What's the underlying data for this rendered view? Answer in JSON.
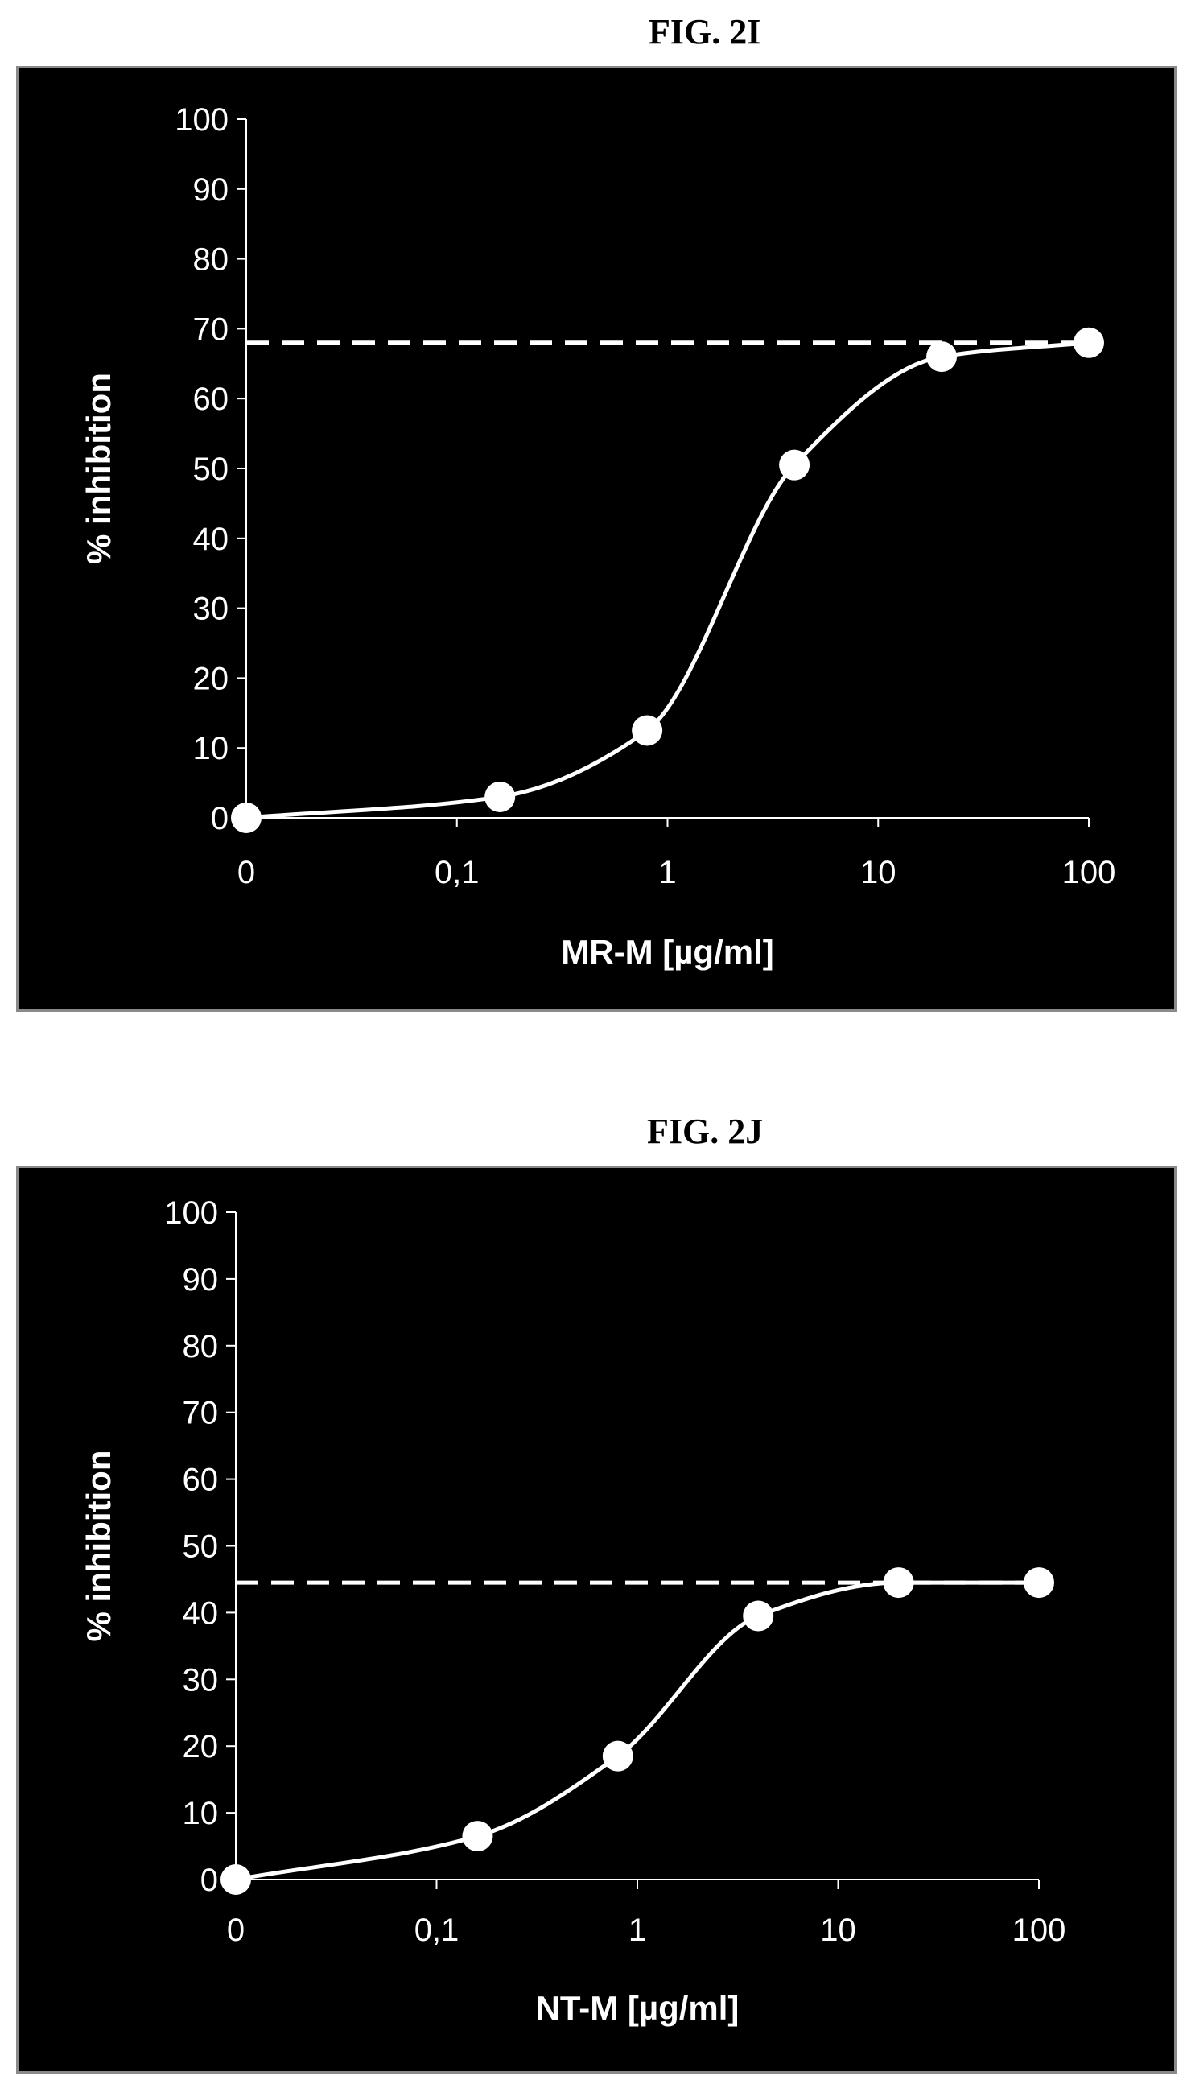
{
  "chart_data": [
    {
      "type": "line",
      "figure_label": "FIG. 2I",
      "xlabel": "MR-M [µg/ml]",
      "ylabel": "% inhibition",
      "x_scale": "log",
      "x_ticks": [
        "0",
        "0,1",
        "1",
        "10",
        "100"
      ],
      "ylim": [
        0,
        100
      ],
      "y_ticks": [
        0,
        10,
        20,
        30,
        40,
        50,
        60,
        70,
        80,
        90,
        100
      ],
      "series": [
        {
          "x": [
            0,
            0.16,
            0.8,
            4,
            20,
            100
          ],
          "y": [
            0,
            3,
            12.5,
            50.5,
            66,
            68
          ]
        }
      ],
      "reference_line": {
        "y": 68,
        "style": "dashed"
      },
      "grid": false,
      "background": "#000000",
      "foreground": "#ffffff"
    },
    {
      "type": "line",
      "figure_label": "FIG. 2J",
      "xlabel": "NT-M [µg/ml]",
      "ylabel": "% inhibition",
      "x_scale": "log",
      "x_ticks": [
        "0",
        "0,1",
        "1",
        "10",
        "100"
      ],
      "ylim": [
        0,
        100
      ],
      "y_ticks": [
        0,
        10,
        20,
        30,
        40,
        50,
        60,
        70,
        80,
        90,
        100
      ],
      "series": [
        {
          "x": [
            0,
            0.16,
            0.8,
            4,
            20,
            100
          ],
          "y": [
            0,
            6.5,
            18.5,
            39.5,
            44.5,
            44.5
          ]
        }
      ],
      "reference_line": {
        "y": 44.5,
        "style": "dashed"
      },
      "grid": false,
      "background": "#000000",
      "foreground": "#ffffff"
    }
  ]
}
